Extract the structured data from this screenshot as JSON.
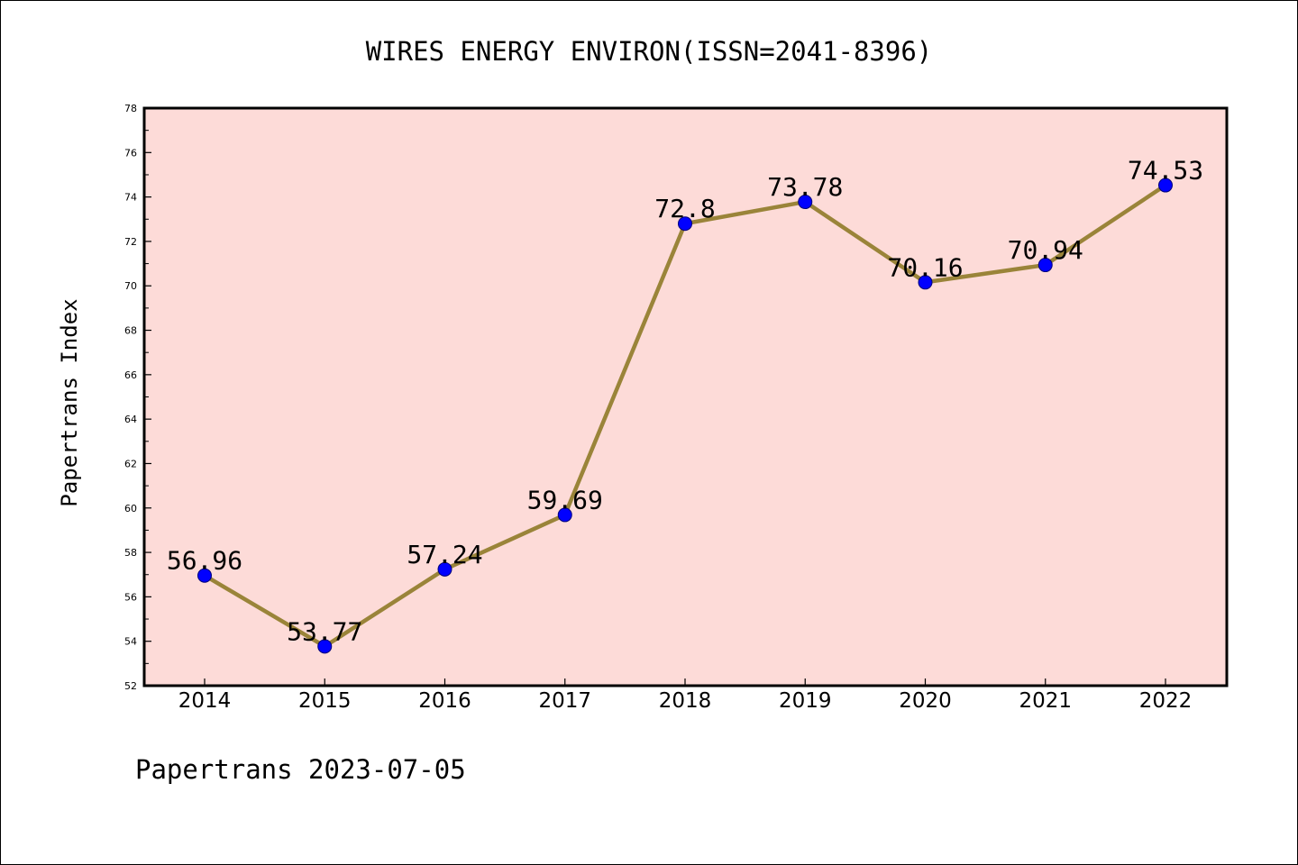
{
  "chart_data": {
    "type": "line",
    "title": "WIRES ENERGY ENVIRON(ISSN=2041-8396)",
    "xlabel": "",
    "ylabel": "Papertrans Index",
    "categories": [
      "2014",
      "2015",
      "2016",
      "2017",
      "2018",
      "2019",
      "2020",
      "2021",
      "2022"
    ],
    "series": [
      {
        "values": [
          56.96,
          53.77,
          57.24,
          59.69,
          72.8,
          73.78,
          70.16,
          70.94,
          74.53
        ],
        "labels": [
          "56.96",
          "53.77",
          "57.24",
          "59.69",
          "72.8",
          "73.78",
          "70.16",
          "70.94",
          "74.53"
        ]
      }
    ],
    "ylim": [
      52,
      78
    ],
    "yticks": [
      "52",
      "54",
      "56",
      "58",
      "60",
      "62",
      "64",
      "66",
      "68",
      "70",
      "72",
      "74",
      "76",
      "78"
    ],
    "grid": false,
    "legend": "none",
    "colors": {
      "plot_background": "#fddbd8",
      "line": "#9a8439",
      "marker": "#0000ff"
    }
  },
  "footer": "Papertrans 2023-07-05"
}
